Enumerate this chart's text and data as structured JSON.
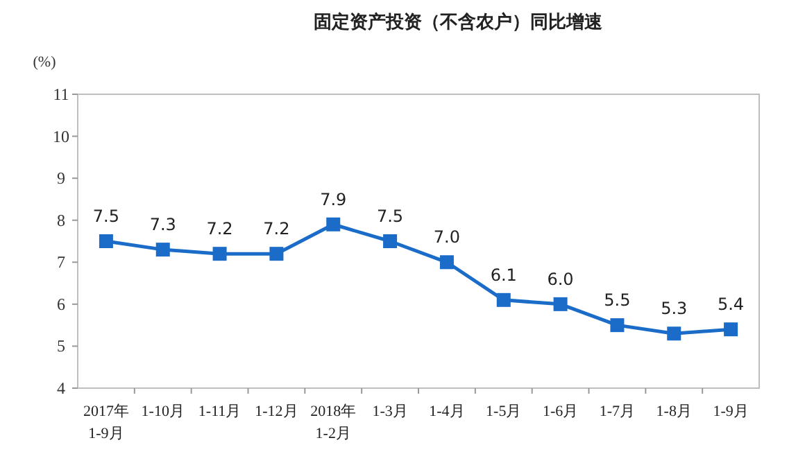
{
  "chart_data": {
    "type": "line",
    "title": "固定资产投资（不含农户）同比增速",
    "ylabel": "(%)",
    "categories": [
      "2017年\n1-9月",
      "1-10月",
      "1-11月",
      "1-12月",
      "2018年\n1-2月",
      "1-3月",
      "1-4月",
      "1-5月",
      "1-6月",
      "1-7月",
      "1-8月",
      "1-9月"
    ],
    "series": [
      {
        "color": "#1a6cc8",
        "values": [
          7.5,
          7.3,
          7.2,
          7.2,
          7.9,
          7.5,
          7.0,
          6.1,
          6.0,
          5.5,
          5.3,
          5.4
        ],
        "value_labels": [
          "7.5",
          "7.3",
          "7.2",
          "7.2",
          "7.9",
          "7.5",
          "7.0",
          "6.1",
          "6.0",
          "5.5",
          "5.3",
          "5.4"
        ]
      }
    ],
    "ylim": [
      4,
      11
    ],
    "yticks": [
      4,
      5,
      6,
      7,
      8,
      9,
      10,
      11
    ],
    "marker": "square",
    "line_style": "solid",
    "grid": false
  }
}
